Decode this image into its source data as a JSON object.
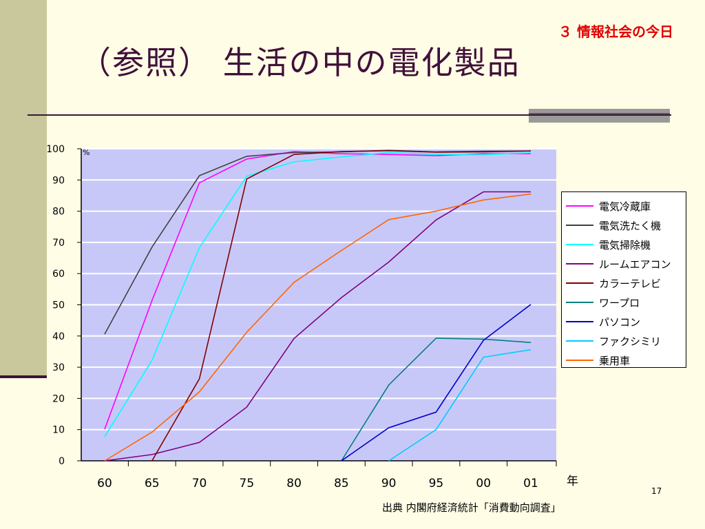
{
  "slide": {
    "section_label": "３ 情報社会の今日",
    "title": "（参照） 生活の中の電化製品",
    "source": "出典 内閣府経済統計「消費動向調査」",
    "year_unit": "年",
    "page_number": "17"
  },
  "colors": {
    "plot_background": "#c8c8f8",
    "grid": "#ffffff",
    "accent_red": "#e00000",
    "title": "#40103a"
  },
  "chart_data": {
    "type": "line",
    "x": [
      1960,
      1965,
      1970,
      1975,
      1980,
      1985,
      1990,
      1995,
      2000,
      2001
    ],
    "x_tick_labels": [
      "60",
      "65",
      "70",
      "75",
      "80",
      "85",
      "90",
      "95",
      "00",
      "01"
    ],
    "xlabel": "年",
    "ylabel": "%",
    "ylim": [
      0,
      100
    ],
    "y_ticks": [
      0,
      10,
      20,
      30,
      40,
      50,
      60,
      70,
      80,
      90,
      100
    ],
    "grid": "horizontal",
    "legend_position": "right",
    "series": [
      {
        "name": "電気冷蔵庫",
        "color": "#ff00ff",
        "values": [
          10.1,
          51.4,
          89.1,
          96.7,
          99.1,
          98.4,
          98.2,
          97.8,
          98.4,
          98.4
        ]
      },
      {
        "name": "電気洗たく機",
        "color": "#404040",
        "values": [
          40.6,
          68.5,
          91.4,
          97.6,
          98.8,
          99.0,
          99.5,
          99.0,
          99.2,
          99.3
        ]
      },
      {
        "name": "電気掃除機",
        "color": "#00ffff",
        "values": [
          7.7,
          32.2,
          68.3,
          91.2,
          95.8,
          97.4,
          98.8,
          98.2,
          98.1,
          98.7
        ]
      },
      {
        "name": "ルームエアコン",
        "color": "#800080",
        "values": [
          0,
          2.0,
          5.9,
          17.2,
          39.2,
          52.3,
          63.7,
          77.2,
          86.2,
          86.2
        ]
      },
      {
        "name": "カラーテレビ",
        "color": "#800000",
        "values": [
          null,
          0,
          26.3,
          90.3,
          98.2,
          99.1,
          99.4,
          98.9,
          99.0,
          99.3
        ]
      },
      {
        "name": "ワープロ",
        "color": "#008080",
        "values": [
          null,
          null,
          null,
          null,
          null,
          0,
          24.3,
          39.3,
          39.0,
          37.9
        ]
      },
      {
        "name": "パソコン",
        "color": "#0000cc",
        "values": [
          null,
          null,
          null,
          null,
          null,
          0,
          10.6,
          15.6,
          38.6,
          50.1
        ]
      },
      {
        "name": "ファクシミリ",
        "color": "#00ccff",
        "values": [
          null,
          null,
          null,
          null,
          null,
          null,
          0,
          10.0,
          33.2,
          35.6
        ]
      },
      {
        "name": "乗用車",
        "color": "#ff6600",
        "values": [
          0,
          9.2,
          22.1,
          41.2,
          57.2,
          67.4,
          77.3,
          80.0,
          83.6,
          85.5
        ]
      }
    ]
  }
}
